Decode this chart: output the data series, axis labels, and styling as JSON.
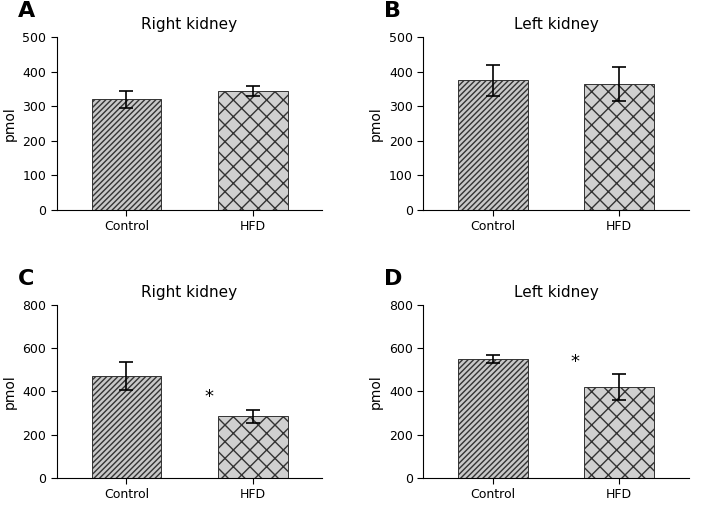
{
  "panels": [
    {
      "label": "A",
      "title": "Right kidney",
      "categories": [
        "Control",
        "HFD"
      ],
      "values": [
        320,
        345
      ],
      "errors": [
        25,
        15
      ],
      "ylim": [
        0,
        500
      ],
      "yticks": [
        0,
        100,
        200,
        300,
        400,
        500
      ],
      "ylabel": "pmol",
      "significant": [
        false,
        false
      ]
    },
    {
      "label": "B",
      "title": "Left kidney",
      "categories": [
        "Control",
        "HFD"
      ],
      "values": [
        375,
        365
      ],
      "errors": [
        45,
        50
      ],
      "ylim": [
        0,
        500
      ],
      "yticks": [
        0,
        100,
        200,
        300,
        400,
        500
      ],
      "ylabel": "pmol",
      "significant": [
        false,
        false
      ]
    },
    {
      "label": "C",
      "title": "Right kidney",
      "categories": [
        "Control",
        "HFD"
      ],
      "values": [
        470,
        285
      ],
      "errors": [
        65,
        30
      ],
      "ylim": [
        0,
        800
      ],
      "yticks": [
        0,
        200,
        400,
        600,
        800
      ],
      "ylabel": "pmol",
      "significant": [
        false,
        true
      ]
    },
    {
      "label": "D",
      "title": "Left kidney",
      "categories": [
        "Control",
        "HFD"
      ],
      "values": [
        550,
        420
      ],
      "errors": [
        20,
        60
      ],
      "ylim": [
        0,
        800
      ],
      "yticks": [
        0,
        200,
        400,
        600,
        800
      ],
      "ylabel": "pmol",
      "significant": [
        false,
        true
      ]
    }
  ],
  "background_color": "#ffffff",
  "label_fontsize": 16,
  "title_fontsize": 11,
  "tick_fontsize": 9,
  "ylabel_fontsize": 10
}
